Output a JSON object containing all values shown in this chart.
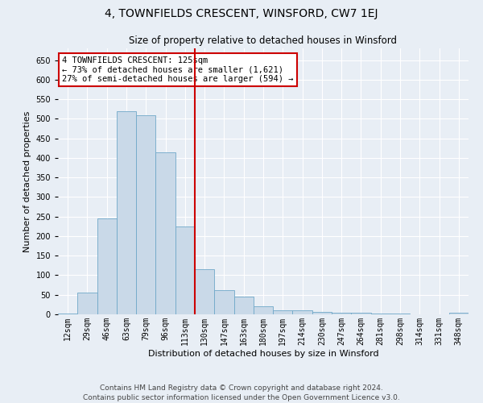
{
  "title": "4, TOWNFIELDS CRESCENT, WINSFORD, CW7 1EJ",
  "subtitle": "Size of property relative to detached houses in Winsford",
  "xlabel": "Distribution of detached houses by size in Winsford",
  "ylabel": "Number of detached properties",
  "categories": [
    "12sqm",
    "29sqm",
    "46sqm",
    "63sqm",
    "79sqm",
    "96sqm",
    "113sqm",
    "130sqm",
    "147sqm",
    "163sqm",
    "180sqm",
    "197sqm",
    "214sqm",
    "230sqm",
    "247sqm",
    "264sqm",
    "281sqm",
    "298sqm",
    "314sqm",
    "331sqm",
    "348sqm"
  ],
  "values": [
    3,
    56,
    245,
    520,
    510,
    415,
    225,
    115,
    62,
    45,
    20,
    11,
    10,
    6,
    5,
    5,
    2,
    2,
    1,
    1,
    5
  ],
  "bar_color": "#c9d9e8",
  "bar_edge_color": "#6fa8c8",
  "highlight_color": "#cc0000",
  "red_line_x": 6.5,
  "ylim": [
    0,
    680
  ],
  "yticks": [
    0,
    50,
    100,
    150,
    200,
    250,
    300,
    350,
    400,
    450,
    500,
    550,
    600,
    650
  ],
  "annotation_text": "4 TOWNFIELDS CRESCENT: 125sqm\n← 73% of detached houses are smaller (1,621)\n27% of semi-detached houses are larger (594) →",
  "annotation_box_facecolor": "#ffffff",
  "annotation_box_edgecolor": "#cc0000",
  "footer_line1": "Contains HM Land Registry data © Crown copyright and database right 2024.",
  "footer_line2": "Contains public sector information licensed under the Open Government Licence v3.0.",
  "background_color": "#e8eef5",
  "grid_color": "#ffffff",
  "title_fontsize": 10,
  "subtitle_fontsize": 8.5,
  "axis_label_fontsize": 8,
  "tick_fontsize": 7,
  "annotation_fontsize": 7.5,
  "footer_fontsize": 6.5
}
